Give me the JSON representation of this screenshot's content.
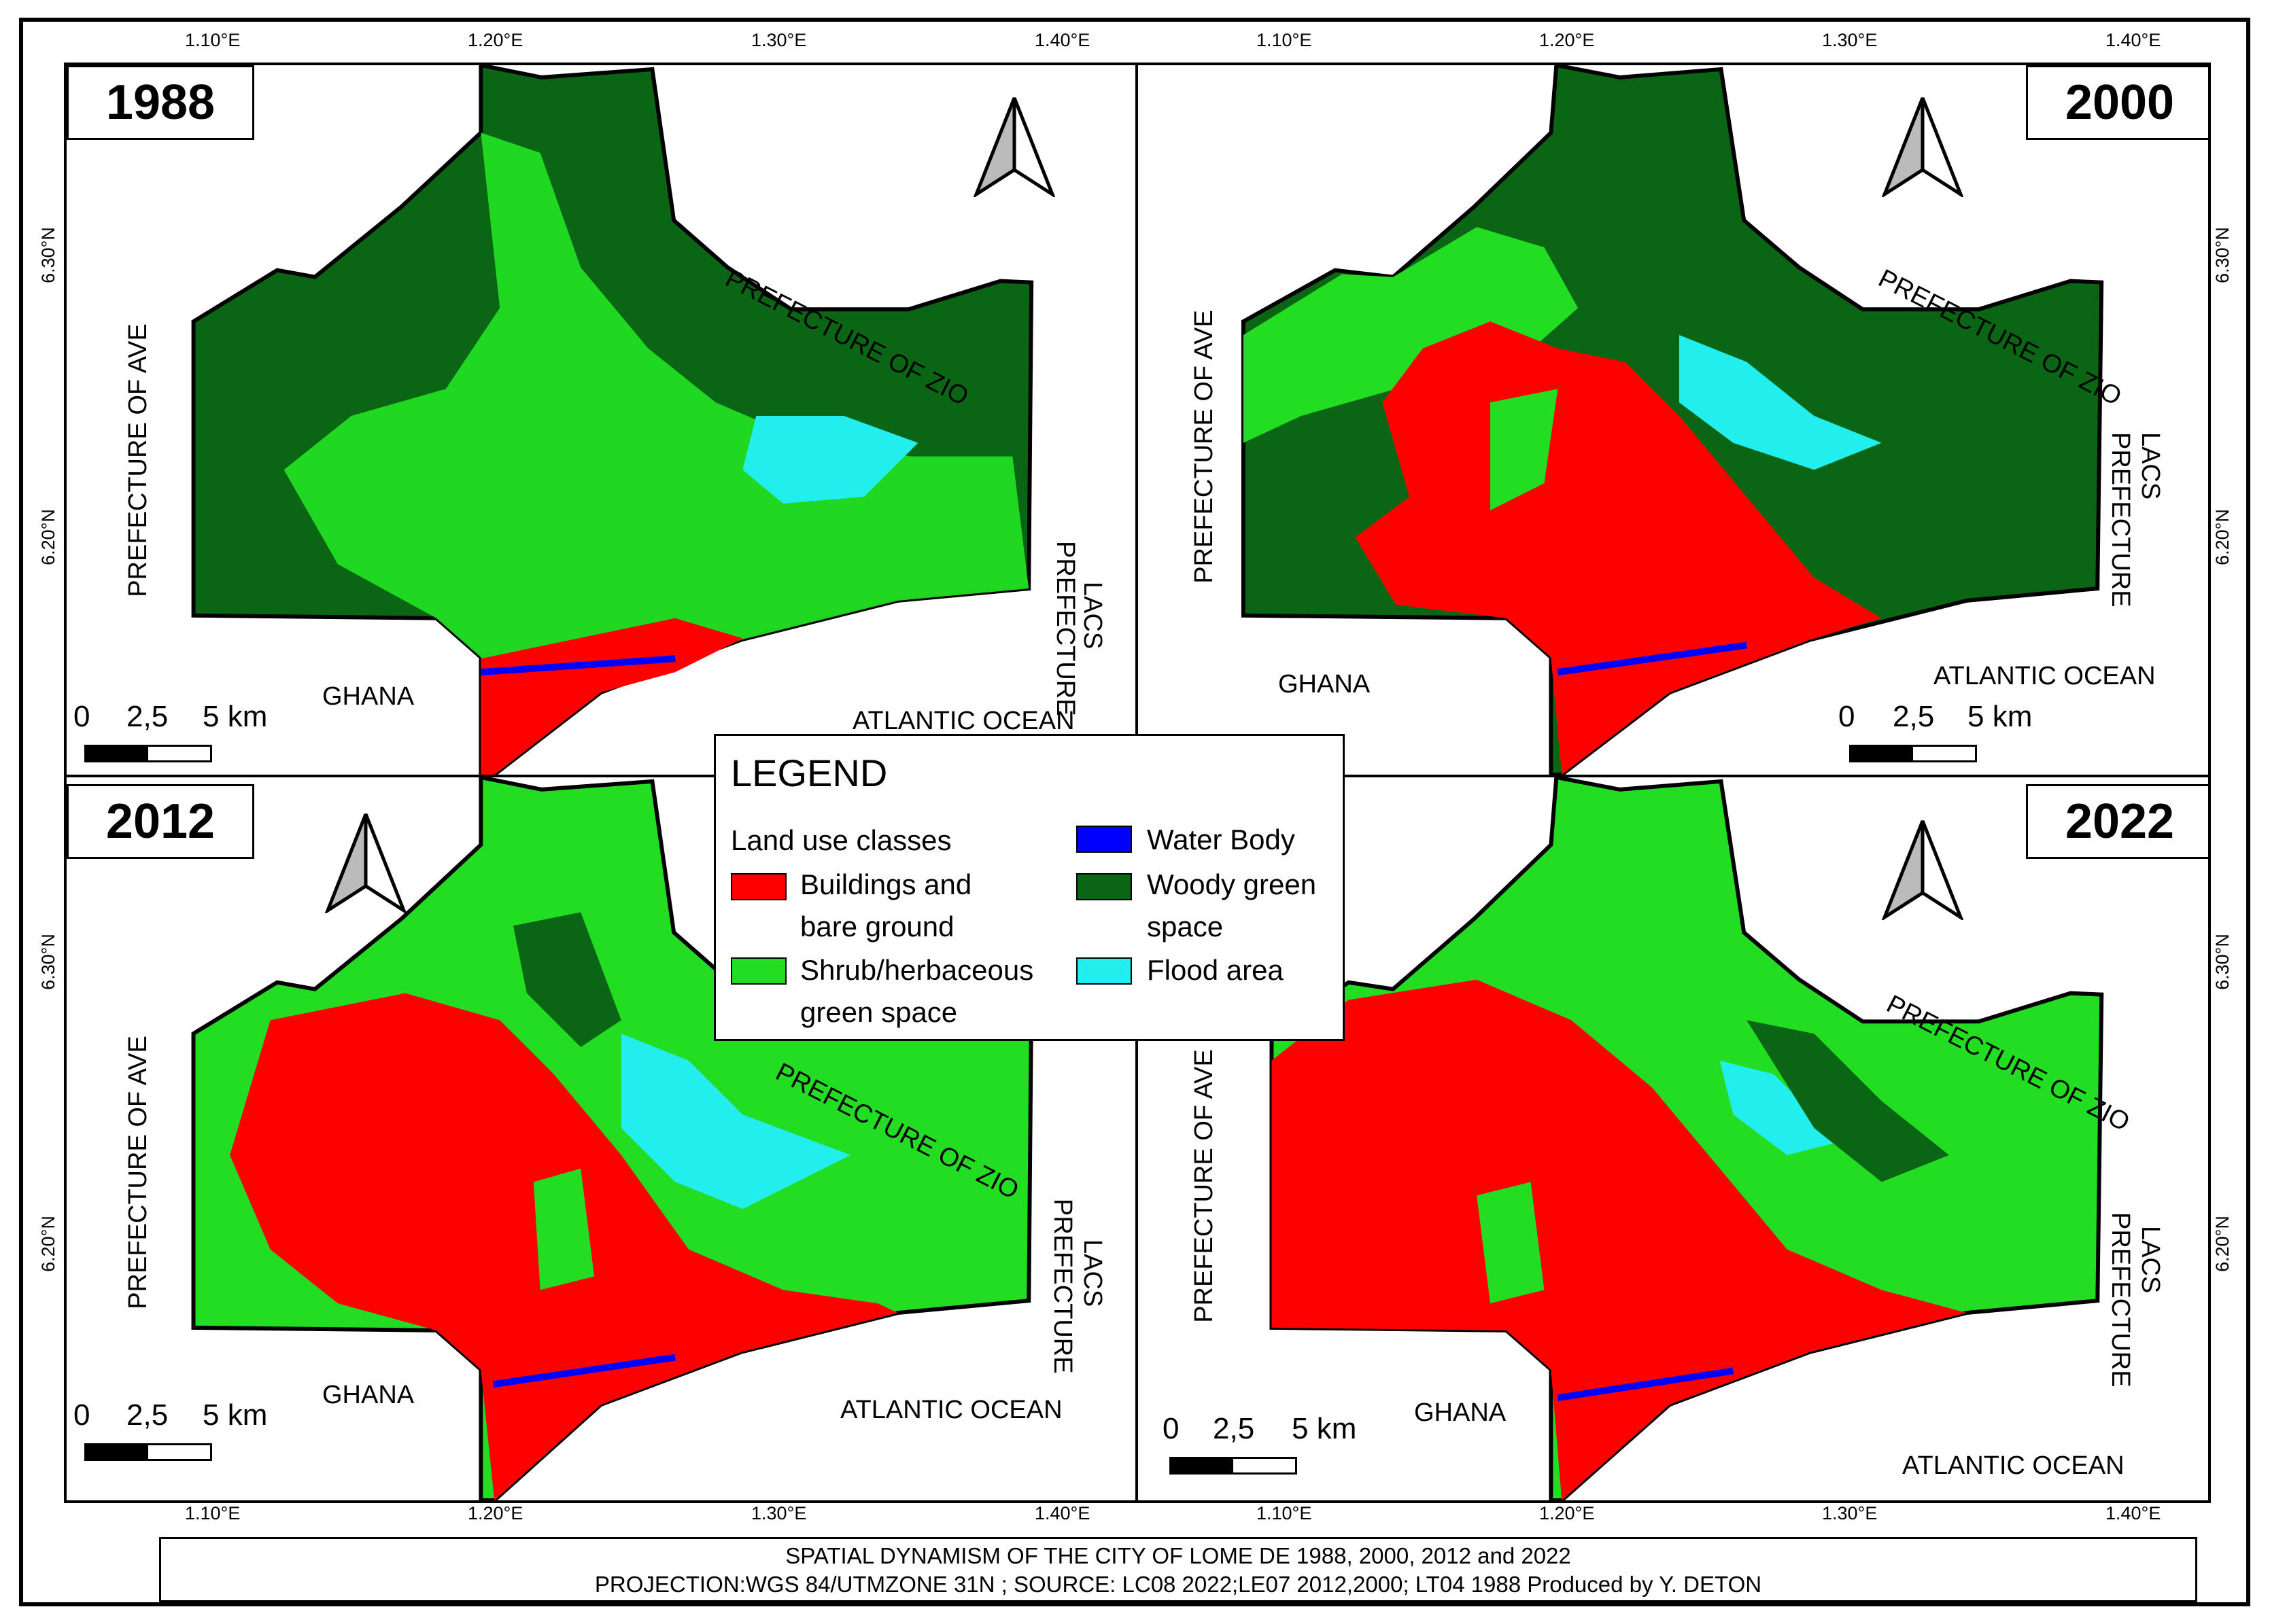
{
  "figure": {
    "top_ticks_left": [
      "1.10°E",
      "1.20°E",
      "1.30°E",
      "1.40°E"
    ],
    "top_ticks_right": [
      "1.10°E",
      "1.20°E",
      "1.30°E",
      "1.40°E"
    ],
    "bottom_ticks_left": [
      "1.10°E",
      "1.20°E",
      "1.30°E",
      "1.40°E"
    ],
    "bottom_ticks_right": [
      "1.10°E",
      "1.20°E",
      "1.30°E",
      "1.40°E"
    ],
    "lat_ticks": [
      "6.30°N",
      "6.20°N"
    ]
  },
  "panels": [
    {
      "year": "1988",
      "labels": {
        "ave": "PREFECTURE OF AVE",
        "zio": "PREFECTURE OF ZIO",
        "lacs_1": "LACS",
        "lacs_2": "PREFECTURE",
        "ghana": "GHANA",
        "ocean": "ATLANTIC OCEAN"
      }
    },
    {
      "year": "2000",
      "labels": {
        "ave": "PREFECTURE OF AVE",
        "zio": "PREFECTURE OF ZIO",
        "lacs_1": "LACS",
        "lacs_2": "PREFECTURE",
        "ghana": "GHANA",
        "ocean": "ATLANTIC OCEAN"
      }
    },
    {
      "year": "2012",
      "labels": {
        "ave": "PREFECTURE OF AVE",
        "zio": "PREFECTURE OF ZIO",
        "lacs_1": "LACS",
        "lacs_2": "PREFECTURE",
        "ghana": "GHANA",
        "ocean": "ATLANTIC OCEAN"
      }
    },
    {
      "year": "2022",
      "labels": {
        "ave": "PREFECTURE OF AVE",
        "zio": "PREFECTURE OF ZIO",
        "lacs_1": "LACS",
        "lacs_2": "PREFECTURE",
        "ghana": "GHANA",
        "ocean": "ATLANTIC OCEAN"
      }
    }
  ],
  "scale": {
    "t0": "0",
    "t1": "2,5",
    "t2": "5 km"
  },
  "legend": {
    "title": "LEGEND",
    "subtitle": "Land use classes",
    "items": [
      {
        "line1": "Buildings and",
        "line2": "bare ground",
        "color": "#ff0000"
      },
      {
        "line1": "Shrub/herbaceous",
        "line2": "green space",
        "color": "#22dd22"
      },
      {
        "line1": "Water Body",
        "line2": "",
        "color": "#0000ff"
      },
      {
        "line1": "Woody green",
        "line2": "space",
        "color": "#0a6614"
      },
      {
        "line1": "Flood area",
        "line2": "",
        "color": "#22eeee"
      }
    ]
  },
  "footer": {
    "line1": "SPATIAL DYNAMISM OF THE CITY OF LOME DE 1988, 2000, 2012 and 2022",
    "line2": "PROJECTION:WGS 84/UTMZONE 31N ; SOURCE: LC08 2022;LE07 2012,2000; LT04 1988  Produced by Y. DETON"
  },
  "colors": {
    "built": "#ff0000",
    "shrub": "#22dd22",
    "water": "#0000ff",
    "woody": "#0a6614",
    "flood": "#22eeee"
  }
}
